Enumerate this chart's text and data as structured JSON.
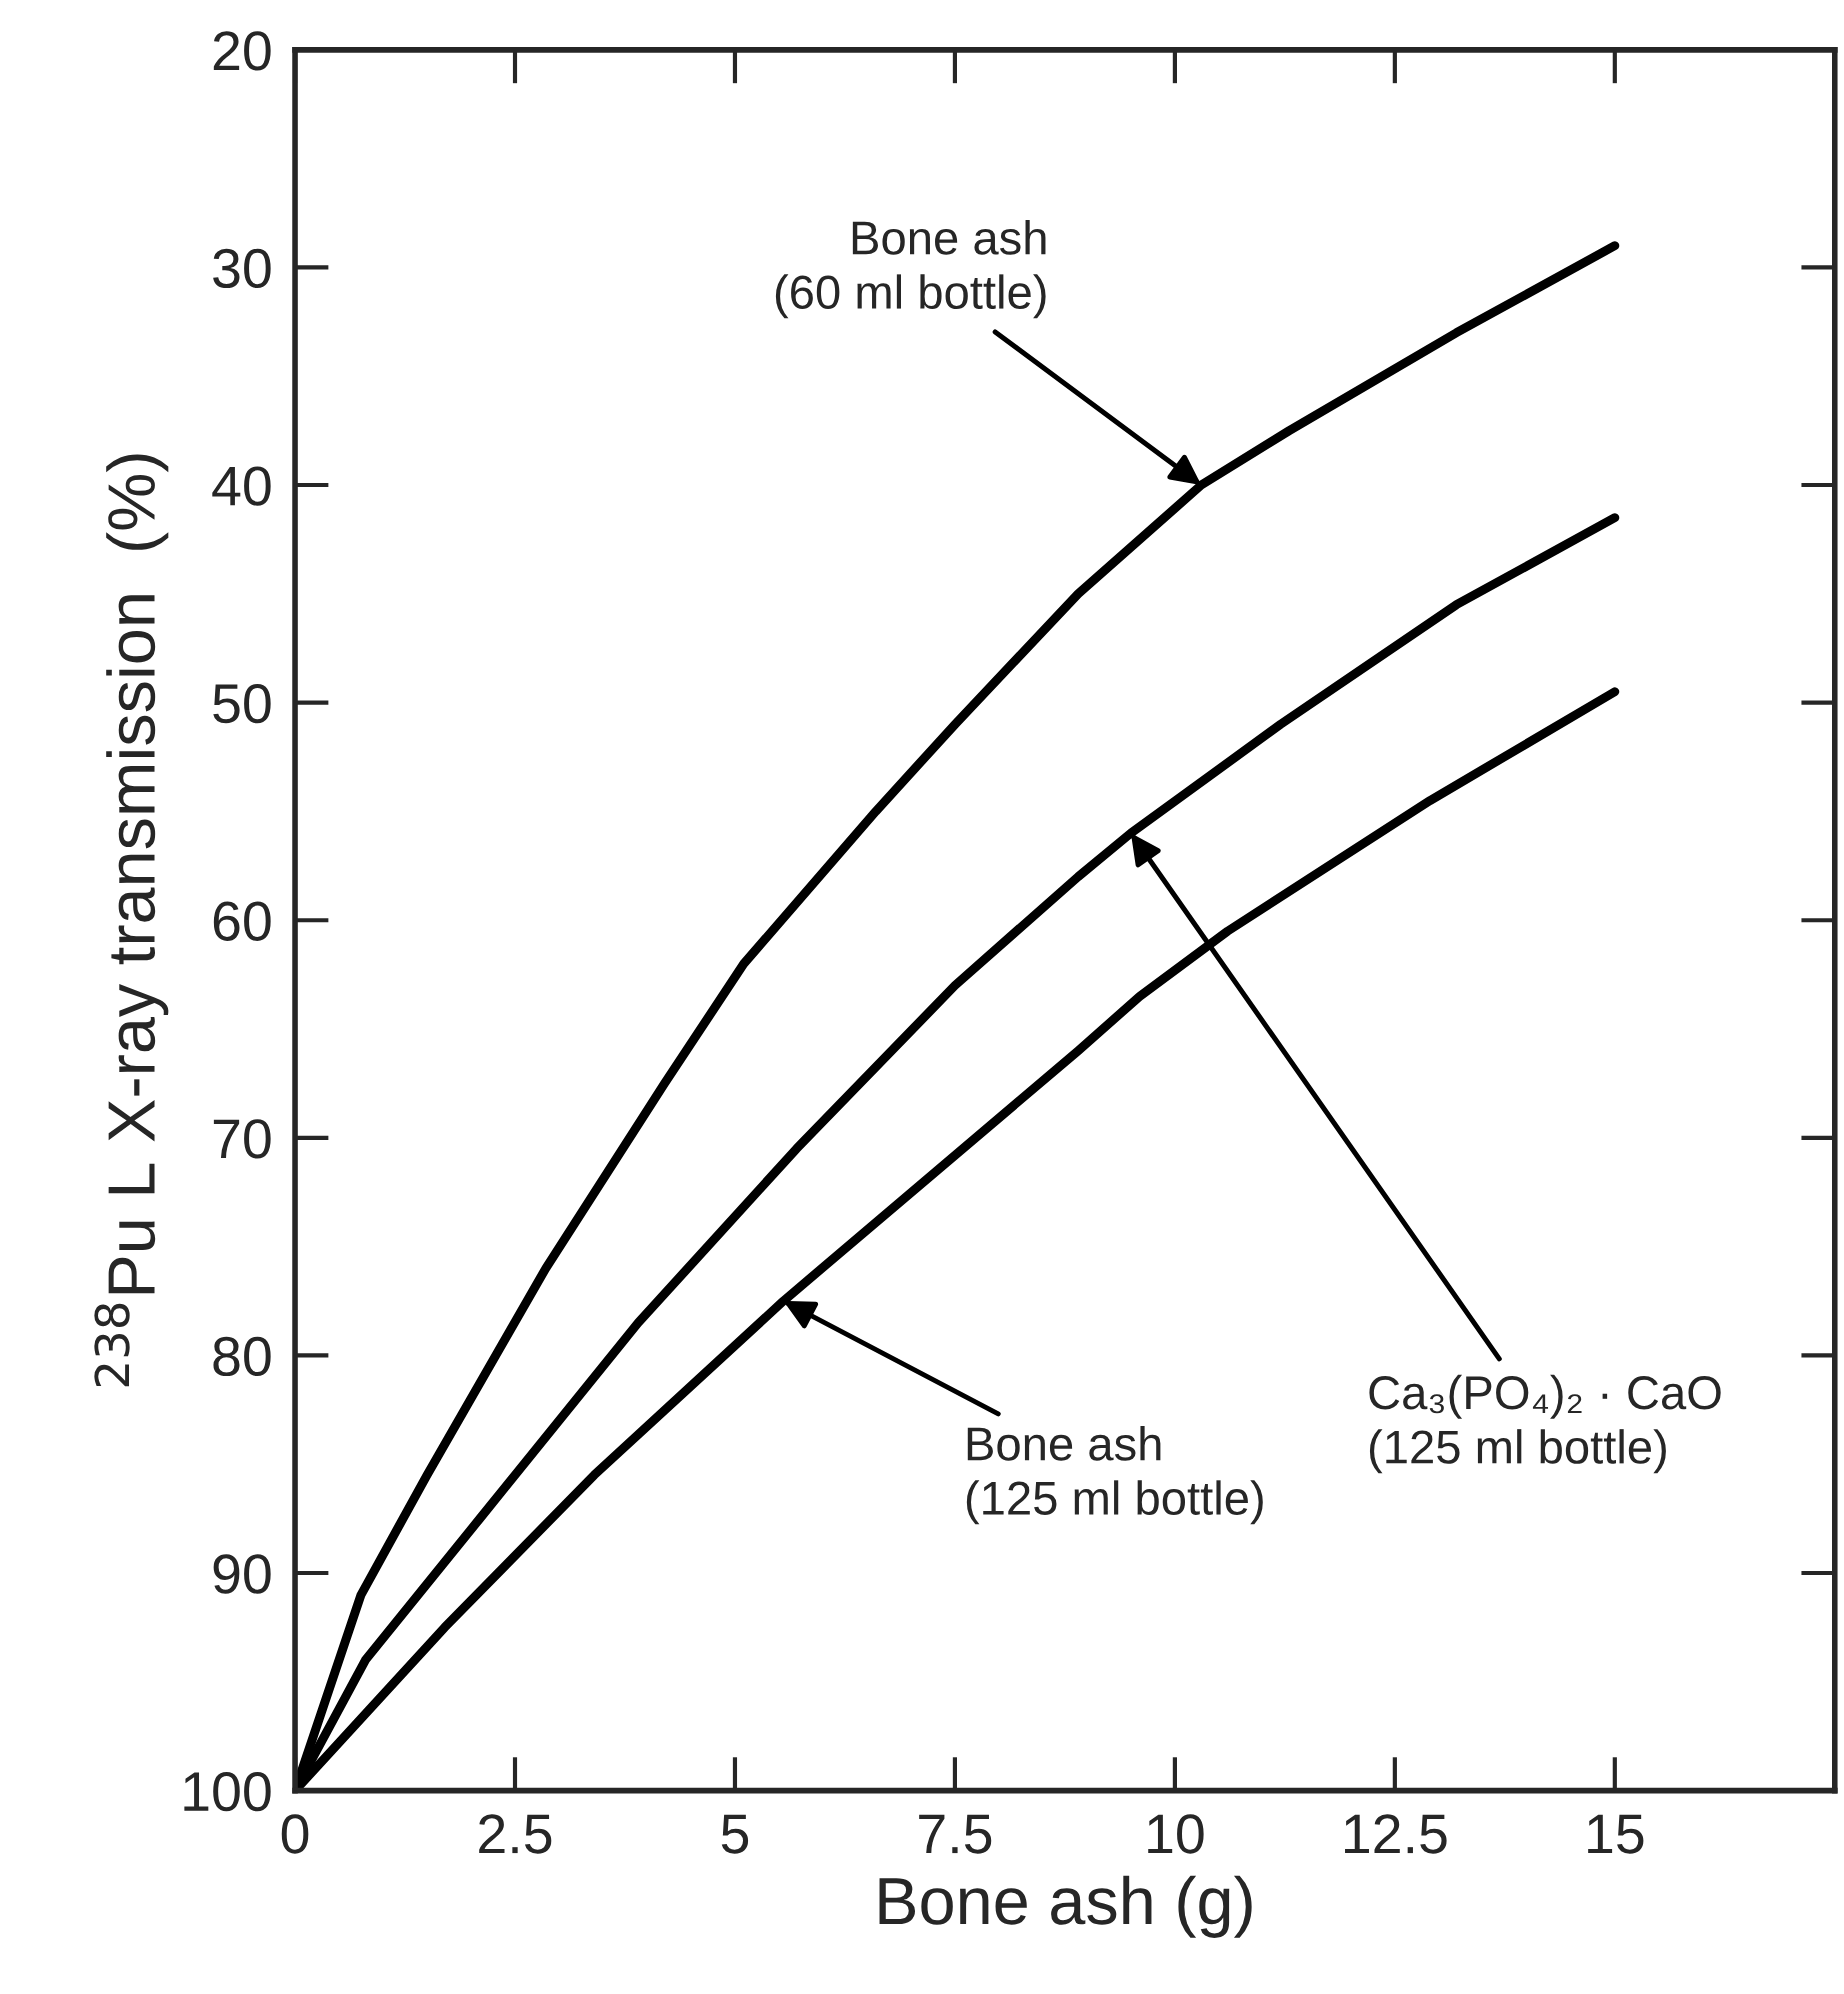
{
  "chart_data": {
    "type": "line",
    "xlabel": "Bone ash (g)",
    "ylabel": "$^{238}$Pu L X-ray transmission  (%)",
    "xlim": [
      0,
      17.5
    ],
    "xticks": [
      0,
      2.5,
      5,
      7.5,
      10,
      12.5,
      15
    ],
    "ylim": [
      100,
      20
    ],
    "yticks": [
      20,
      30,
      40,
      50,
      60,
      70,
      80,
      90,
      100
    ],
    "grid": false,
    "marker": "none",
    "line_style": "solid",
    "series": [
      {
        "color": "#000000",
        "x": [
          0,
          0.75,
          1.5,
          2.85,
          4.2,
          5.1,
          6.6,
          7.5,
          8.9,
          10.3,
          11.3,
          13.2,
          15
        ],
        "values": [
          100,
          91,
          85.5,
          76,
          67.5,
          62,
          55,
          51,
          45,
          40,
          37.5,
          33,
          29
        ]
      },
      {
        "color": "#000000",
        "x": [
          0,
          0.8,
          2.1,
          3.9,
          5.7,
          7.5,
          8.9,
          9.5,
          11.2,
          13.2,
          15
        ],
        "values": [
          100,
          94,
          87.5,
          78.5,
          70.5,
          63,
          58,
          56,
          51,
          45.5,
          41.5
        ]
      },
      {
        "color": "#000000",
        "x": [
          0,
          1.7,
          3.4,
          5.55,
          8.9,
          9.6,
          10.6,
          12.9,
          15
        ],
        "values": [
          100,
          92.5,
          85.5,
          77.5,
          66,
          63.5,
          60.5,
          54.5,
          49.5
        ]
      }
    ],
    "annotations": [
      {
        "text": "Bone ash\n(60 ml bottle)",
        "x": 10.3,
        "y": 40
      },
      {
        "text": "Ca₃(PO₄)₂ · CaO\n(125 ml bottle)",
        "x": 9.5,
        "y": 56
      },
      {
        "text": "Bone ash\n(125 ml bottle)",
        "x": 5.55,
        "y": 77.5
      }
    ]
  }
}
